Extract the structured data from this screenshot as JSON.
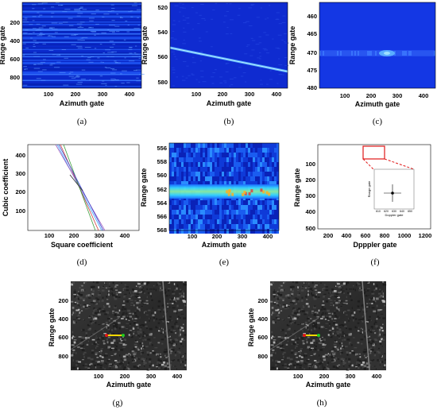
{
  "colors": {
    "jet_bg": "#1030d8",
    "line": "#6fc8ff",
    "red": "#e01818",
    "green": "#22cc22",
    "yellow": "#ffd800"
  },
  "panels": {
    "a": {
      "caption": "(a)",
      "ylabel": "Range gate",
      "xlabel": "Azimuth gate",
      "xticks": [
        "100",
        "200",
        "300",
        "400"
      ],
      "yticks": [
        "200",
        "400",
        "600",
        "800"
      ]
    },
    "b": {
      "caption": "(b)",
      "ylabel": "Range gate",
      "xlabel": "Azimuth gate",
      "xticks": [
        "100",
        "200",
        "300",
        "400"
      ],
      "yticks": [
        "520",
        "540",
        "560",
        "580"
      ]
    },
    "c": {
      "caption": "(c)",
      "ylabel": "Range gate",
      "xlabel": "Azimuth gate",
      "xticks": [
        "100",
        "200",
        "300",
        "400"
      ],
      "yticks": [
        "460",
        "465",
        "470",
        "475",
        "480"
      ]
    },
    "d": {
      "caption": "(d)",
      "ylabel": "Cubic coefficient",
      "xlabel": "Square coefficient",
      "xticks": [
        "100",
        "200",
        "300",
        "400"
      ],
      "yticks": [
        "100",
        "200",
        "300",
        "400"
      ]
    },
    "e": {
      "caption": "(e)",
      "ylabel": "Range gate",
      "xlabel": "Azimuth gate",
      "xticks": [
        "100",
        "200",
        "300",
        "400"
      ],
      "yticks": [
        "556",
        "558",
        "560",
        "562",
        "564",
        "566",
        "568"
      ]
    },
    "f": {
      "caption": "(f)",
      "ylabel": "Range gate",
      "xlabel": "Dpppler gate",
      "xticks": [
        "200",
        "400",
        "600",
        "800",
        "1000",
        "1200"
      ],
      "yticks": [
        "100",
        "200",
        "300",
        "400",
        "500"
      ],
      "inset": {
        "ylabel": "Range gate",
        "xlabel": "Doppler gate",
        "xticks": [
          "610",
          "620",
          "630",
          "640",
          "650"
        ]
      }
    },
    "g": {
      "caption": "(g)",
      "ylabel": "Range gate",
      "xlabel": "Azimuth gate",
      "xticks": [
        "100",
        "200",
        "300",
        "400"
      ],
      "yticks": [
        "200",
        "400",
        "600",
        "800"
      ]
    },
    "h": {
      "caption": "(h)",
      "ylabel": "Range gate",
      "xlabel": "Azimuth gate",
      "xticks": [
        "100",
        "200",
        "300",
        "400"
      ],
      "yticks": [
        "200",
        "400",
        "600",
        "800"
      ]
    }
  }
}
